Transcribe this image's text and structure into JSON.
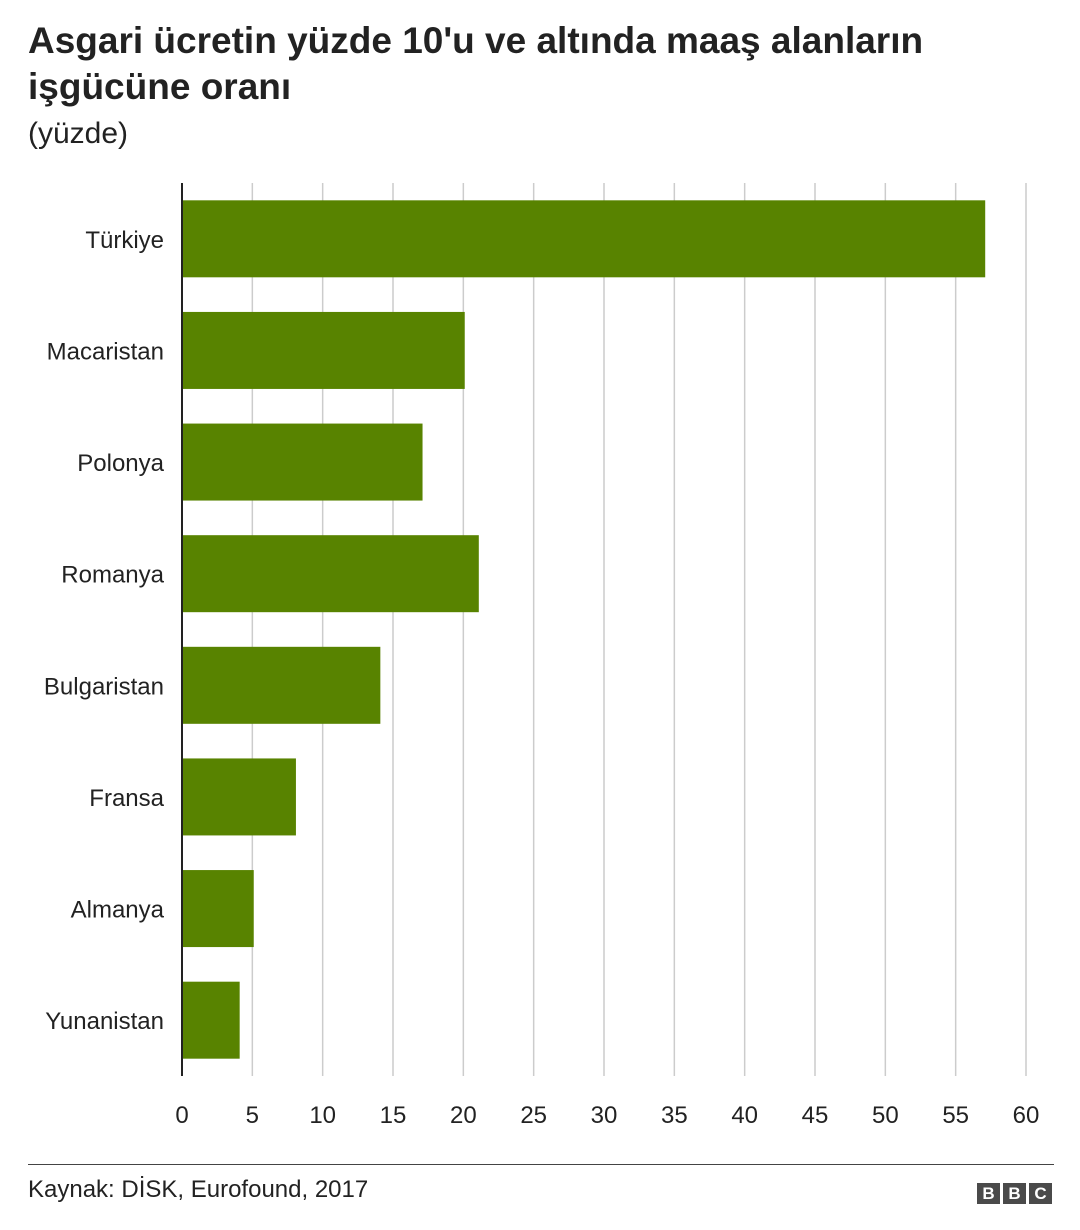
{
  "header": {
    "title": "Asgari ücretin yüzde 10'u ve altında maaş alanların işgücüne oranı",
    "subtitle": "(yüzde)"
  },
  "chart_data": {
    "type": "bar",
    "orientation": "horizontal",
    "categories": [
      "Türkiye",
      "Macaristan",
      "Polonya",
      "Romanya",
      "Bulgaristan",
      "Fransa",
      "Almanya",
      "Yunanistan"
    ],
    "values": [
      57.1,
      20.1,
      17.1,
      21.1,
      14.1,
      8.1,
      5.1,
      4.1
    ],
    "xlim": [
      0,
      60
    ],
    "xticks": [
      0,
      5,
      10,
      15,
      20,
      25,
      30,
      35,
      40,
      45,
      50,
      55,
      60
    ],
    "grid": "vertical",
    "bar_color": "#588300",
    "grid_color": "#cccccc"
  },
  "footer": {
    "source": "Kaynak: DİSK, Eurofound, 2017",
    "logo_letters": [
      "B",
      "B",
      "C"
    ]
  }
}
